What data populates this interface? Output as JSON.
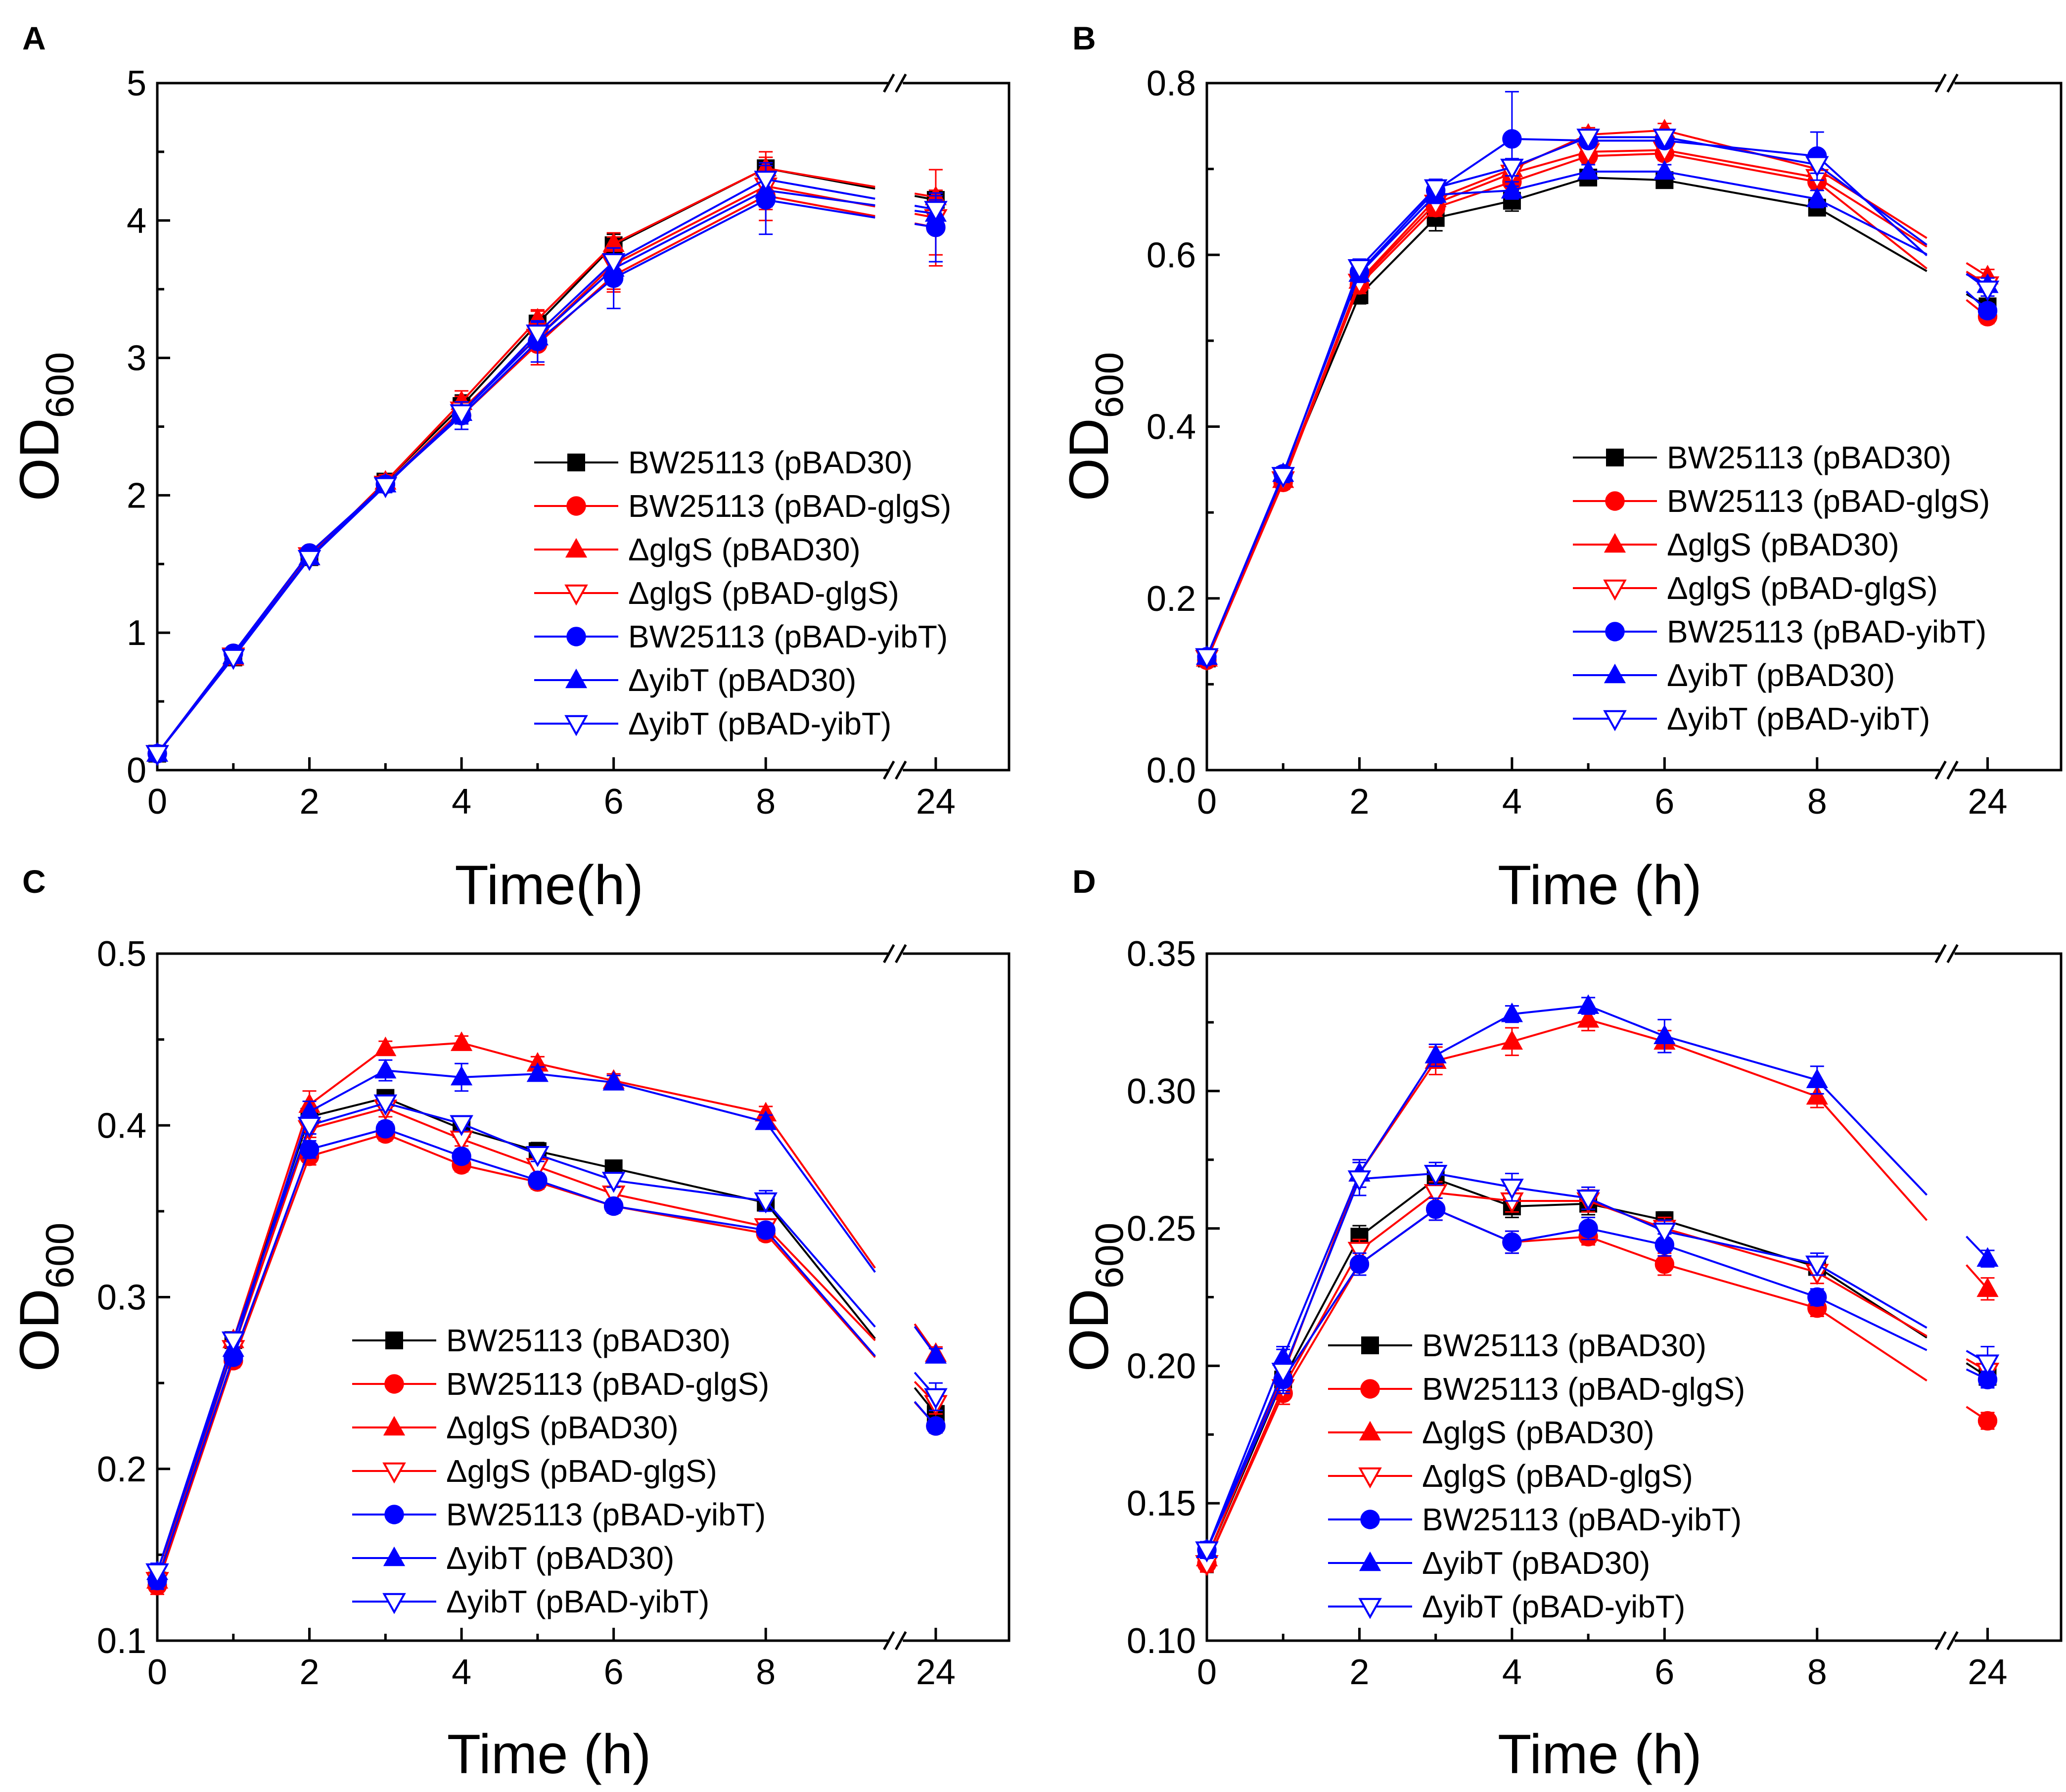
{
  "colors": {
    "black": "#000000",
    "red": "#ff0000",
    "blue": "#0000ff"
  },
  "series_styles": [
    {
      "color": "black",
      "marker": "square"
    },
    {
      "color": "red",
      "marker": "circle"
    },
    {
      "color": "red",
      "marker": "triangle-up"
    },
    {
      "color": "red",
      "marker": "triangle-down-open"
    },
    {
      "color": "blue",
      "marker": "circle"
    },
    {
      "color": "blue",
      "marker": "triangle-up"
    },
    {
      "color": "blue",
      "marker": "triangle-down-open"
    }
  ],
  "chart_data": [
    {
      "type": "line",
      "panel": "A",
      "xlabel": "Time(h)",
      "ylabel": {
        "base": "OD",
        "sub": "600"
      },
      "x": [
        0,
        1,
        2,
        3,
        4,
        5,
        6,
        8,
        24
      ],
      "x_ticks": [
        0,
        2,
        4,
        6,
        8,
        24
      ],
      "axis_break_between": [
        8,
        24
      ],
      "ylim": [
        0,
        5
      ],
      "y_ticks": [
        "0",
        "1",
        "2",
        "3",
        "4",
        "5"
      ],
      "legend_position": "bottom-right",
      "series": [
        {
          "name": "BW25113 (pBAD30)",
          "values": [
            0.12,
            0.82,
            1.55,
            2.1,
            2.65,
            3.25,
            3.82,
            4.38,
            4.15
          ],
          "errors": [
            0.02,
            0.02,
            0.03,
            0.05,
            0.08,
            0.06,
            0.08,
            0.08,
            0.05
          ]
        },
        {
          "name": "BW25113 (pBAD-glgS)",
          "values": [
            0.12,
            0.85,
            1.58,
            2.08,
            2.58,
            3.1,
            3.6,
            4.18,
            3.95
          ],
          "errors": [
            0.02,
            0.02,
            0.03,
            0.05,
            0.1,
            0.15,
            0.1,
            0.1,
            0.2
          ]
        },
        {
          "name": "ΔglgS (pBAD30)",
          "values": [
            0.12,
            0.82,
            1.55,
            2.1,
            2.68,
            3.28,
            3.83,
            4.38,
            4.17
          ],
          "errors": [
            0.02,
            0.02,
            0.03,
            0.05,
            0.08,
            0.06,
            0.08,
            0.08,
            0.05
          ]
        },
        {
          "name": "ΔglgS (pBAD-glgS)",
          "values": [
            0.12,
            0.83,
            1.56,
            2.08,
            2.62,
            3.15,
            3.68,
            4.25,
            4.02
          ],
          "errors": [
            0.02,
            0.02,
            0.03,
            0.05,
            0.1,
            0.2,
            0.2,
            0.25,
            0.35
          ]
        },
        {
          "name": "BW25113 (pBAD-yibT)",
          "values": [
            0.12,
            0.85,
            1.58,
            2.08,
            2.58,
            3.12,
            3.58,
            4.15,
            3.95
          ],
          "errors": [
            0.02,
            0.02,
            0.03,
            0.05,
            0.1,
            0.15,
            0.22,
            0.25,
            0.25
          ]
        },
        {
          "name": "ΔyibT (pBAD30)",
          "values": [
            0.12,
            0.83,
            1.55,
            2.08,
            2.6,
            3.15,
            3.65,
            4.22,
            4.05
          ],
          "errors": [
            0.02,
            0.02,
            0.03,
            0.05,
            0.08,
            0.08,
            0.1,
            0.12,
            0.1
          ]
        },
        {
          "name": "ΔyibT (pBAD-yibT)",
          "values": [
            0.12,
            0.82,
            1.54,
            2.07,
            2.6,
            3.18,
            3.7,
            4.3,
            4.08
          ],
          "errors": [
            0.02,
            0.02,
            0.03,
            0.05,
            0.08,
            0.08,
            0.1,
            0.12,
            0.1
          ]
        }
      ]
    },
    {
      "type": "line",
      "panel": "B",
      "xlabel": "Time (h)",
      "ylabel": {
        "base": "OD",
        "sub": "600"
      },
      "x": [
        0,
        1,
        2,
        3,
        4,
        5,
        6,
        8,
        24
      ],
      "x_ticks": [
        0,
        2,
        4,
        6,
        8,
        24
      ],
      "axis_break_between": [
        8,
        24
      ],
      "ylim": [
        0,
        0.8
      ],
      "y_ticks": [
        "0.0",
        "0.2",
        "0.4",
        "0.6",
        "0.8"
      ],
      "legend_position": "bottom-right",
      "series": [
        {
          "name": "BW25113 (pBAD30)",
          "values": [
            0.13,
            0.34,
            0.553,
            0.643,
            0.663,
            0.69,
            0.687,
            0.655,
            0.54
          ],
          "errors": [
            0.005,
            0.008,
            0.01,
            0.015,
            0.012,
            0.005,
            0.005,
            0.005,
            0.008
          ]
        },
        {
          "name": "BW25113 (pBAD-glgS)",
          "values": [
            0.128,
            0.335,
            0.565,
            0.655,
            0.685,
            0.715,
            0.718,
            0.685,
            0.528
          ],
          "errors": [
            0.005,
            0.008,
            0.01,
            0.01,
            0.012,
            0.008,
            0.008,
            0.01,
            0.008
          ]
        },
        {
          "name": "ΔglgS (pBAD30)",
          "values": [
            0.13,
            0.338,
            0.57,
            0.665,
            0.7,
            0.74,
            0.745,
            0.7,
            0.575
          ],
          "errors": [
            0.005,
            0.008,
            0.01,
            0.01,
            0.01,
            0.008,
            0.008,
            0.01,
            0.008
          ]
        },
        {
          "name": "ΔglgS (pBAD-glgS)",
          "values": [
            0.13,
            0.338,
            0.568,
            0.66,
            0.695,
            0.72,
            0.722,
            0.69,
            0.565
          ],
          "errors": [
            0.005,
            0.008,
            0.01,
            0.01,
            0.01,
            0.008,
            0.008,
            0.01,
            0.008
          ]
        },
        {
          "name": "BW25113 (pBAD-yibT)",
          "values": [
            0.132,
            0.345,
            0.58,
            0.675,
            0.735,
            0.733,
            0.733,
            0.715,
            0.535
          ],
          "errors": [
            0.005,
            0.008,
            0.01,
            0.01,
            0.055,
            0.008,
            0.008,
            0.028,
            0.008
          ]
        },
        {
          "name": "ΔyibT (pBAD30)",
          "values": [
            0.132,
            0.345,
            0.578,
            0.67,
            0.675,
            0.697,
            0.697,
            0.665,
            0.565
          ],
          "errors": [
            0.005,
            0.008,
            0.01,
            0.01,
            0.01,
            0.008,
            0.008,
            0.01,
            0.008
          ]
        },
        {
          "name": "ΔyibT (pBAD-yibT)",
          "values": [
            0.132,
            0.343,
            0.585,
            0.678,
            0.702,
            0.737,
            0.737,
            0.705,
            0.56
          ],
          "errors": [
            0.005,
            0.008,
            0.01,
            0.01,
            0.01,
            0.008,
            0.008,
            0.01,
            0.008
          ]
        }
      ]
    },
    {
      "type": "line",
      "panel": "C",
      "xlabel": "Time (h)",
      "ylabel": {
        "base": "OD",
        "sub": "600"
      },
      "x": [
        0,
        1,
        2,
        3,
        4,
        5,
        6,
        8,
        24
      ],
      "x_ticks": [
        0,
        2,
        4,
        6,
        8,
        24
      ],
      "axis_break_between": [
        8,
        24
      ],
      "ylim": [
        0.1,
        0.5
      ],
      "y_ticks": [
        "0.1",
        "0.2",
        "0.3",
        "0.4",
        "0.5"
      ],
      "legend_position": "bottom-right",
      "series": [
        {
          "name": "BW25113 (pBAD30)",
          "values": [
            0.135,
            0.275,
            0.405,
            0.416,
            0.398,
            0.385,
            0.375,
            0.355,
            0.232
          ],
          "errors": [
            0.005,
            0.004,
            0.005,
            0.004,
            0.004,
            0.005,
            0.004,
            0.004,
            0.006
          ]
        },
        {
          "name": "BW25113 (pBAD-glgS)",
          "values": [
            0.132,
            0.263,
            0.382,
            0.395,
            0.377,
            0.367,
            0.353,
            0.337,
            0.225
          ],
          "errors": [
            0.005,
            0.004,
            0.005,
            0.004,
            0.004,
            0.004,
            0.004,
            0.004,
            0.004
          ]
        },
        {
          "name": "ΔglgS (pBAD30)",
          "values": [
            0.135,
            0.275,
            0.412,
            0.445,
            0.448,
            0.436,
            0.426,
            0.407,
            0.267
          ],
          "errors": [
            0.005,
            0.004,
            0.008,
            0.004,
            0.004,
            0.004,
            0.004,
            0.004,
            0.004
          ]
        },
        {
          "name": "ΔglgS (pBAD-glgS)",
          "values": [
            0.135,
            0.27,
            0.398,
            0.41,
            0.392,
            0.376,
            0.36,
            0.341,
            0.238
          ],
          "errors": [
            0.005,
            0.004,
            0.005,
            0.005,
            0.004,
            0.004,
            0.004,
            0.004,
            0.006
          ]
        },
        {
          "name": "BW25113 (pBAD-yibT)",
          "values": [
            0.135,
            0.265,
            0.386,
            0.398,
            0.382,
            0.368,
            0.353,
            0.339,
            0.225
          ],
          "errors": [
            0.005,
            0.004,
            0.005,
            0.004,
            0.004,
            0.004,
            0.004,
            0.004,
            0.004
          ]
        },
        {
          "name": "ΔyibT (pBAD30)",
          "values": [
            0.14,
            0.27,
            0.408,
            0.432,
            0.428,
            0.43,
            0.425,
            0.402,
            0.266
          ],
          "errors": [
            0.005,
            0.004,
            0.006,
            0.006,
            0.008,
            0.004,
            0.004,
            0.004,
            0.004
          ]
        },
        {
          "name": "ΔyibT (pBAD-yibT)",
          "values": [
            0.14,
            0.275,
            0.4,
            0.413,
            0.401,
            0.383,
            0.368,
            0.356,
            0.242
          ],
          "errors": [
            0.005,
            0.004,
            0.005,
            0.004,
            0.004,
            0.004,
            0.004,
            0.006,
            0.008
          ]
        }
      ]
    },
    {
      "type": "line",
      "panel": "D",
      "xlabel": "Time (h)",
      "ylabel": {
        "base": "OD",
        "sub": "600"
      },
      "x": [
        0,
        1,
        2,
        3,
        4,
        5,
        6,
        8,
        24
      ],
      "x_ticks": [
        0,
        2,
        4,
        6,
        8,
        24
      ],
      "axis_break_between": [
        8,
        24
      ],
      "ylim": [
        0.1,
        0.35
      ],
      "y_ticks": [
        "0.10",
        "0.15",
        "0.20",
        "0.25",
        "0.30",
        "0.35"
      ],
      "legend_position": "bottom-right",
      "series": [
        {
          "name": "BW25113 (pBAD30)",
          "values": [
            0.13,
            0.195,
            0.247,
            0.268,
            0.258,
            0.259,
            0.253,
            0.236,
            0.196
          ],
          "errors": [
            0.003,
            0.004,
            0.004,
            0.004,
            0.004,
            0.004,
            0.003,
            0.003,
            0.003
          ]
        },
        {
          "name": "BW25113 (pBAD-glgS)",
          "values": [
            0.128,
            0.19,
            0.237,
            0.257,
            0.245,
            0.247,
            0.237,
            0.221,
            0.18
          ],
          "errors": [
            0.003,
            0.004,
            0.004,
            0.004,
            0.004,
            0.003,
            0.004,
            0.003,
            0.003
          ]
        },
        {
          "name": "ΔglgS (pBAD30)",
          "values": [
            0.13,
            0.197,
            0.27,
            0.311,
            0.318,
            0.326,
            0.318,
            0.298,
            0.228
          ],
          "errors": [
            0.003,
            0.004,
            0.005,
            0.005,
            0.005,
            0.004,
            0.004,
            0.004,
            0.004
          ]
        },
        {
          "name": "ΔglgS (pBAD-glgS)",
          "values": [
            0.128,
            0.192,
            0.242,
            0.263,
            0.26,
            0.26,
            0.25,
            0.234,
            0.198
          ],
          "errors": [
            0.003,
            0.004,
            0.004,
            0.004,
            0.004,
            0.004,
            0.004,
            0.004,
            0.003
          ]
        },
        {
          "name": "BW25113 (pBAD-yibT)",
          "values": [
            0.133,
            0.195,
            0.237,
            0.257,
            0.245,
            0.25,
            0.244,
            0.225,
            0.195
          ],
          "errors": [
            0.003,
            0.004,
            0.004,
            0.004,
            0.004,
            0.004,
            0.004,
            0.003,
            0.003
          ]
        },
        {
          "name": "ΔyibT (pBAD30)",
          "values": [
            0.133,
            0.203,
            0.27,
            0.313,
            0.328,
            0.331,
            0.32,
            0.304,
            0.239
          ],
          "errors": [
            0.003,
            0.004,
            0.005,
            0.004,
            0.003,
            0.003,
            0.006,
            0.005,
            0.003
          ]
        },
        {
          "name": "ΔyibT (pBAD-yibT)",
          "values": [
            0.133,
            0.198,
            0.268,
            0.27,
            0.265,
            0.261,
            0.249,
            0.237,
            0.201
          ],
          "errors": [
            0.003,
            0.008,
            0.006,
            0.004,
            0.005,
            0.004,
            0.004,
            0.004,
            0.006
          ]
        }
      ]
    }
  ]
}
